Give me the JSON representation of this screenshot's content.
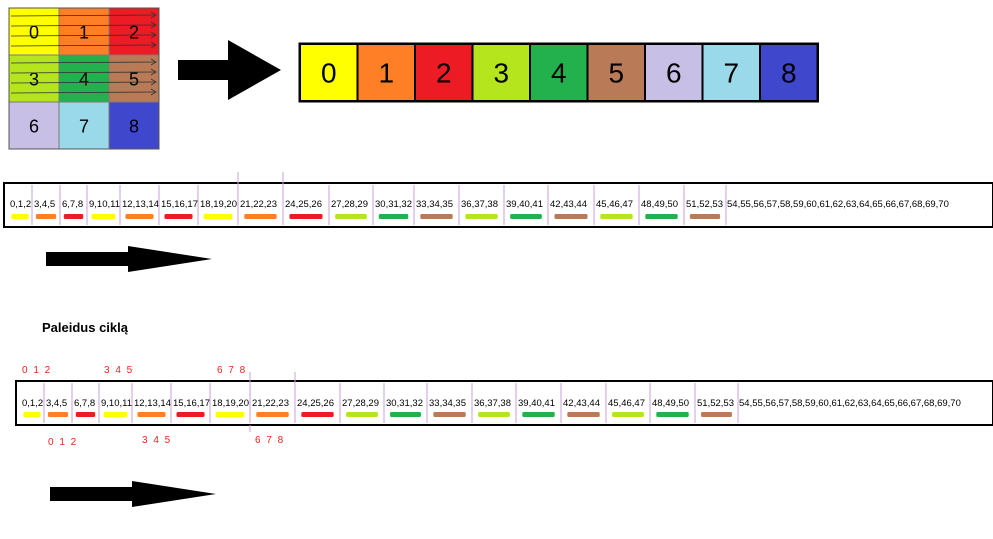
{
  "colors": [
    "#ffff00",
    "#ff7f27",
    "#ed1c24",
    "#b5e61d",
    "#22b14c",
    "#b97a57",
    "#c8bfe7",
    "#99d9ea",
    "#3f48cc"
  ],
  "grid": {
    "cells": [
      "0",
      "1",
      "2",
      "3",
      "4",
      "5",
      "6",
      "7",
      "8"
    ]
  },
  "flat_row": {
    "cells": [
      "0",
      "1",
      "2",
      "3",
      "4",
      "5",
      "6",
      "7",
      "8"
    ]
  },
  "strip1": {
    "groups": [
      "0,1,2",
      "3,4,5",
      "6,7,8",
      "9,10,11",
      "12,13,14",
      "15,16,17",
      "18,19,20",
      "21,22,23",
      "24,25,26",
      "27,28,29",
      "30,31,32",
      "33,34,35",
      "36,37,38",
      "39,40,41",
      "42,43,44",
      "45,46,47",
      "48,49,50",
      "51,52,53"
    ],
    "tail": "54,55,56,57,58,59,60,61,62,63,64,65,66,67,68,69,70"
  },
  "caption": "Paleidus ciklą",
  "strip2": {
    "groups": [
      "0,1,2",
      "3,4,5",
      "6,7,8",
      "9,10,11",
      "12,13,14",
      "15,16,17",
      "18,19,20",
      "21,22,23",
      "24,25,26",
      "27,28,29",
      "30,31,32",
      "33,34,35",
      "36,37,38",
      "39,40,41",
      "42,43,44",
      "45,46,47",
      "48,49,50",
      "51,52,53"
    ],
    "tail": "54,55,56,57,58,59,60,61,62,63,64,65,66,67,68,69,70",
    "annotations_top": [
      "0 1 2",
      "3 4 5",
      "6 7 8"
    ],
    "annotations_bottom": [
      "0 1 2",
      "3 4 5",
      "6 7 8"
    ]
  },
  "annotation_color": "#e8261e"
}
